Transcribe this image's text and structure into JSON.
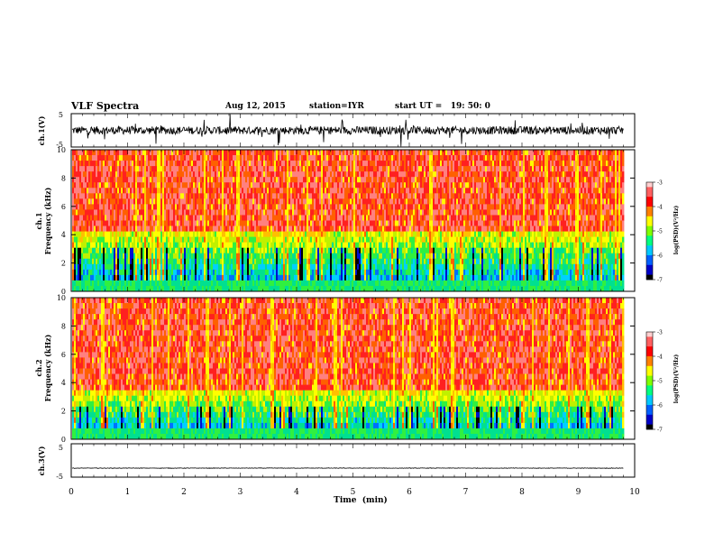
{
  "header": {
    "title": "VLF Spectra",
    "date": "Aug 12, 2015",
    "station": "station=IYR",
    "start": "start UT =   19: 50: 0"
  },
  "colors": {
    "spectro_ramp": [
      "#000000",
      "#0010d0",
      "#0070ff",
      "#00d0ff",
      "#00e090",
      "#30f040",
      "#c0f000",
      "#ffff00",
      "#ffc000",
      "#ff6000",
      "#ff2020",
      "#ff8080"
    ],
    "colorbar": [
      "#000000",
      "#0000c8",
      "#0060ff",
      "#00c8ff",
      "#00ff80",
      "#80ff00",
      "#ffff00",
      "#ff8000",
      "#ff0000",
      "#ff6060",
      "#ffd0d0"
    ]
  },
  "chart_data": [
    {
      "id": "ch1-waveform",
      "type": "line",
      "ylabel": "ch.1(V)",
      "ylim": [
        -5,
        5
      ],
      "yticks": [
        "5",
        "-5"
      ],
      "x_range_min": [
        0,
        9.8
      ],
      "baseline": 0,
      "description_values": "noisy waveform, amplitude about ±2 V with spikes to ±5 V"
    },
    {
      "id": "ch1-spectrogram",
      "type": "heatmap",
      "ylabel_line1": "ch.1",
      "ylabel_line2": "Frequency (kHz)",
      "ylim": [
        0,
        10
      ],
      "yticks": [
        "0",
        "2",
        "4",
        "6",
        "8",
        "10"
      ],
      "x_range_min": [
        0,
        9.8
      ],
      "colorbar_label": "log(PSD)(V²/Hz)",
      "colorbar_ticks": [
        "-3",
        "-4",
        "-5",
        "-6",
        "-7"
      ],
      "colorbar_range": [
        -7,
        -3
      ],
      "low_band_top_khz": 4.2
    },
    {
      "id": "ch2-spectrogram",
      "type": "heatmap",
      "ylabel_line1": "ch.2",
      "ylabel_line2": "Frequency (kHz)",
      "ylim": [
        0,
        10
      ],
      "yticks": [
        "0",
        "2",
        "4",
        "6",
        "8",
        "10"
      ],
      "x_range_min": [
        0,
        9.8
      ],
      "colorbar_label": "log(PSD)(V²/Hz)",
      "colorbar_ticks": [
        "-3",
        "-4",
        "-5",
        "-6",
        "-7"
      ],
      "colorbar_range": [
        -7,
        -3
      ],
      "low_band_top_khz": 3.5
    },
    {
      "id": "ch3-waveform",
      "type": "line",
      "ylabel": "ch.3(V)",
      "ylim": [
        -5,
        5
      ],
      "yticks": [
        "5",
        "-5"
      ],
      "x_range_min": [
        0,
        9.8
      ],
      "baseline": -2.3,
      "xlabel": "Time  (min)",
      "xticks": [
        "0",
        "1",
        "2",
        "3",
        "4",
        "5",
        "6",
        "7",
        "8",
        "9",
        "10"
      ],
      "xlim": [
        0,
        10
      ]
    }
  ]
}
